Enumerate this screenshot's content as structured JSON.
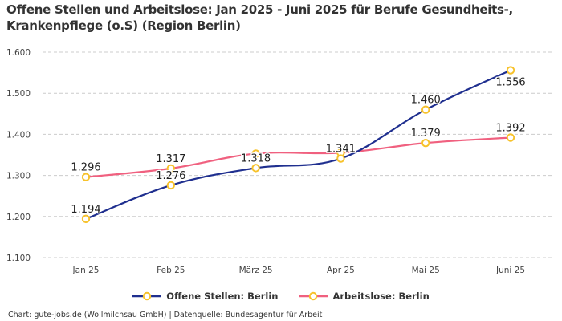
{
  "title": "Offene Stellen und Arbeitslose: Jan 2025 - Juni 2025 für Berufe Gesundheits-, Krankenpflege (o.S) (Region Berlin)",
  "footer": "Chart: gute-jobs.de (Wollmilchsau GmbH) | Datenquelle: Bundesagentur für Arbeit",
  "colors": {
    "offene": "#1f2f8f",
    "arbeitslose": "#f0607f",
    "marker": "#f7c22b",
    "grid": "#cccccc",
    "text": "#333333"
  },
  "chart_data": {
    "type": "line",
    "title": "Offene Stellen und Arbeitslose: Jan 2025 - Juni 2025 für Berufe Gesundheits-, Krankenpflege (o.S) (Region Berlin)",
    "xlabel": "",
    "ylabel": "",
    "categories": [
      "Jan 25",
      "Feb 25",
      "März 25",
      "Apr 25",
      "Mai 25",
      "Juni 25"
    ],
    "yticks": [
      "1.100",
      "1.200",
      "1.300",
      "1.400",
      "1.500",
      "1.600"
    ],
    "ytick_values": [
      1100,
      1200,
      1300,
      1400,
      1500,
      1600
    ],
    "ylim": [
      1100,
      1600
    ],
    "grid": true,
    "legend": "bottom-center",
    "series": [
      {
        "name": "Offene Stellen: Berlin",
        "values": [
          1194,
          1276,
          1318,
          1341,
          1460,
          1556
        ],
        "labels": [
          "1.194",
          "1.276",
          "1.318",
          "1.341",
          "1.460",
          "1.556"
        ],
        "label_pos": [
          "above",
          "above",
          "above",
          "above",
          "above",
          "below"
        ]
      },
      {
        "name": "Arbeitslose: Berlin",
        "values": [
          1296,
          1317,
          1353,
          1355,
          1379,
          1392
        ],
        "labels": [
          "1.296",
          "1.317",
          "",
          "",
          "1.379",
          "1.392"
        ],
        "label_pos": [
          "above",
          "above",
          "none",
          "none",
          "above",
          "above"
        ]
      }
    ]
  }
}
